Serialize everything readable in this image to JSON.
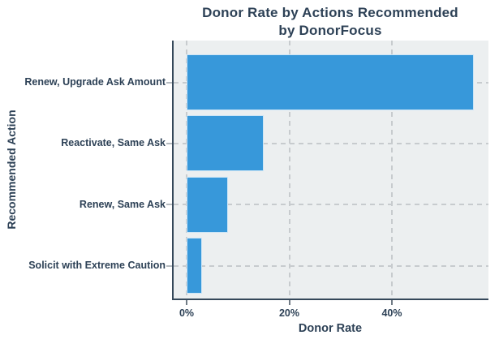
{
  "figure": {
    "title_line1": "Donor Rate by Actions Recommended",
    "title_line2": "by DonorFocus"
  },
  "axes": {
    "x_title": "Donor Rate",
    "y_title": "Recommended Action"
  },
  "chart_data": {
    "type": "bar",
    "orientation": "horizontal",
    "title": "Donor Rate by Actions Recommended by DonorFocus",
    "xlabel": "Donor Rate",
    "ylabel": "Recommended Action",
    "categories": [
      "Renew, Upgrade Ask Amount",
      "Reactivate, Same Ask",
      "Renew, Same Ask",
      "Solicit with Extreme Caution"
    ],
    "values_percent": [
      56,
      15,
      8,
      3
    ],
    "xlim_percent": [
      0,
      58.8
    ],
    "xticks_percent": [
      0,
      20,
      40
    ],
    "xtick_labels": [
      "0%",
      "20%",
      "40%"
    ],
    "grid": "dashed",
    "legend": "none",
    "colors": {
      "bar": "#3798da",
      "plot_background": "#eceff0",
      "grid_line": "#c7cbce",
      "axis_line": "#35485a",
      "text": "#2d4156",
      "figure_background": "#ffffff"
    }
  }
}
